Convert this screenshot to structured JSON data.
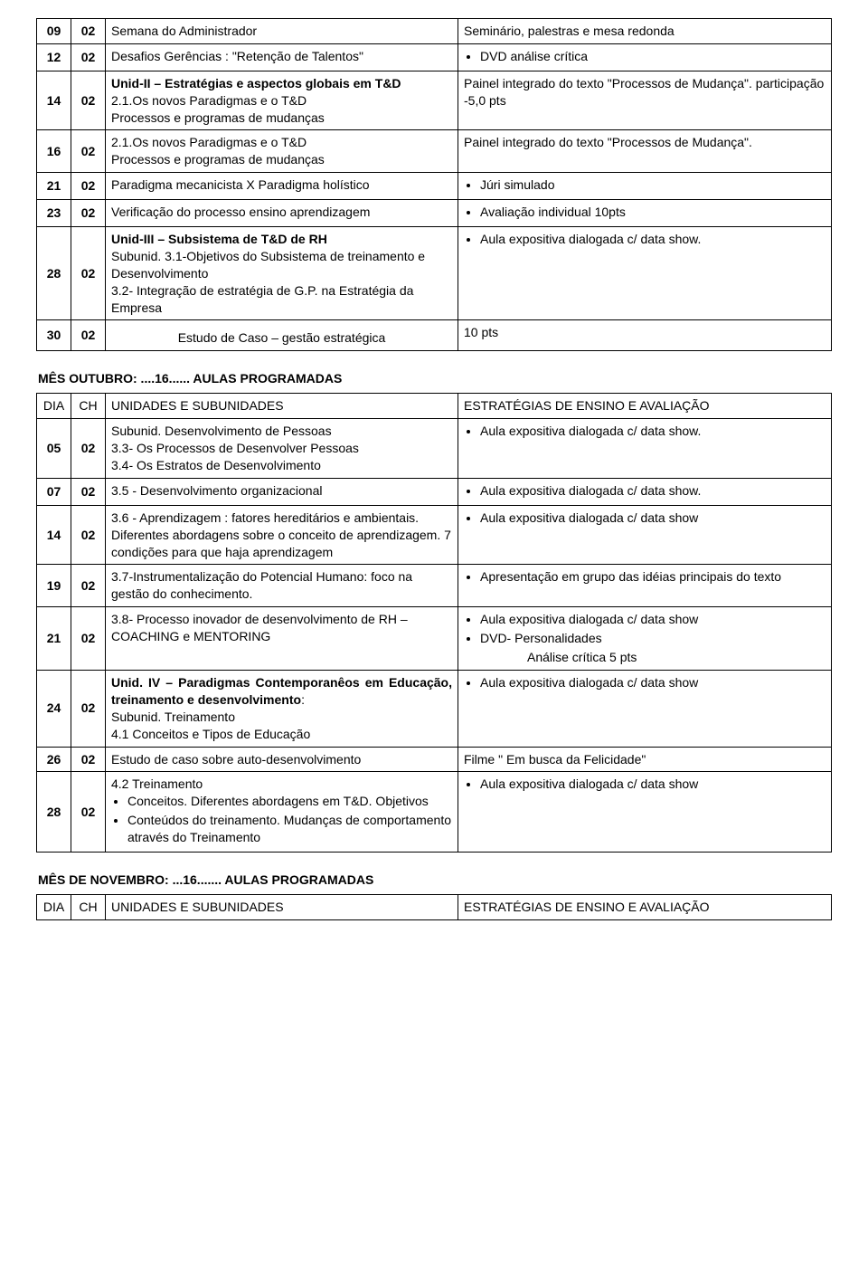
{
  "common": {
    "headers": {
      "dia": "DIA",
      "ch": "CH",
      "unidades": "UNIDADES E SUBUNIDADES",
      "estrategias": "ESTRATÉGIAS DE ENSINO E AVALIAÇÃO"
    },
    "aula_show": "Aula expositiva dialogada c/ data show.",
    "aula_show_np": "Aula expositiva dialogada c/ data show"
  },
  "top_rows": [
    {
      "dia": "09",
      "ch": "02",
      "unit": "Semana do Administrador",
      "strat_plain": "Seminário, palestras e mesa redonda"
    },
    {
      "dia": "12",
      "ch": "02",
      "unit": "Desafios Gerências : \"Retenção de Talentos\"",
      "strat_bullets": [
        "DVD análise crítica"
      ]
    },
    {
      "dia": "14",
      "ch": "02",
      "unit_bold": "Unid-II – Estratégias e aspectos globais em T&D",
      "unit_after": "2.1.Os novos Paradigmas e o T&D\nProcessos e programas de mudanças",
      "strat_plain": "Painel integrado  do texto \"Processos de Mudança\". participação -5,0 pts"
    },
    {
      "dia": "16",
      "ch": "02",
      "unit": "2.1.Os novos Paradigmas e o T&D\nProcessos e programas de mudanças",
      "strat_plain": "Painel integrado  do texto \"Processos de Mudança\"."
    },
    {
      "dia": "21",
      "ch": "02",
      "unit": "Paradigma mecanicista X Paradigma holístico",
      "strat_bullets": [
        "Júri simulado"
      ]
    },
    {
      "dia": "23",
      "ch": "02",
      "unit": "Verificação do processo ensino aprendizagem",
      "strat_bullets": [
        "Avaliação individual  10pts"
      ]
    },
    {
      "dia": "28",
      "ch": "02",
      "unit_bold": "Unid-III – Subsistema de T&D de RH",
      "unit_after": "Subunid. 3.1-Objetivos do Subsistema de treinamento e Desenvolvimento\n3.2- Integração de estratégia de G.P. na Estratégia da Empresa",
      "strat_bullets": [
        "Aula expositiva dialogada c/ data show."
      ]
    },
    {
      "dia": "30",
      "ch": "02",
      "unit_center": "Estudo de Caso – gestão estratégica",
      "strat_plain": "10 pts"
    }
  ],
  "outubro": {
    "title": "MÊS OUTUBRO: ....16...... AULAS PROGRAMADAS",
    "rows": [
      {
        "dia": "05",
        "ch": "02",
        "unit": "Subunid. Desenvolvimento de Pessoas\n3.3- Os Processos de Desenvolver Pessoas\n3.4- Os Estratos de Desenvolvimento",
        "strat_bullets": [
          "Aula expositiva dialogada c/ data show."
        ]
      },
      {
        "dia": "07",
        "ch": "02",
        "unit": "3.5 - Desenvolvimento organizacional",
        "strat_bullets": [
          "Aula expositiva dialogada c/ data show."
        ]
      },
      {
        "dia": "14",
        "ch": "02",
        "unit": "3.6 - Aprendizagem : fatores hereditários e ambientais. Diferentes abordagens  sobre o conceito de aprendizagem. 7 condições para que haja aprendizagem",
        "strat_bullets": [
          "Aula expositiva dialogada c/ data show"
        ]
      },
      {
        "dia": "19",
        "ch": "02",
        "unit": "3.7-Instrumentalização do Potencial Humano: foco na gestão do conhecimento.",
        "strat_bullets": [
          "Apresentação em grupo das idéias principais do texto"
        ]
      },
      {
        "dia": "21",
        "ch": "02",
        "unit": "3.8- Processo inovador de desenvolvimento de RH –COACHING e MENTORING",
        "strat_html": true,
        "strat_b1": "Aula expositiva dialogada c/ data show",
        "strat_b2": "DVD- Personalidades",
        "strat_b2_extra": "Análise crítica 5 pts"
      },
      {
        "dia": "24",
        "ch": "02",
        "unit_bold_justify": "Unid. IV – Paradigmas Contemporanêos em Educação, treinamento e desenvolvimento",
        "unit_after": ":\nSubunid. Treinamento\n4.1 Conceitos e Tipos de Educação",
        "strat_bullets": [
          "Aula expositiva dialogada c/ data show"
        ]
      },
      {
        "dia": "26",
        "ch": "02",
        "unit": "Estudo de caso sobre auto-desenvolvimento",
        "strat_plain": "Filme \" Em busca da Felicidade\""
      },
      {
        "dia": "28",
        "ch": "02",
        "unit_line": "4.2 Treinamento",
        "unit_sub_bullets": [
          "Conceitos. Diferentes abordagens em T&D. Objetivos",
          "Conteúdos do treinamento. Mudanças de comportamento através do Treinamento"
        ],
        "strat_bullets": [
          "Aula expositiva dialogada c/ data show"
        ]
      }
    ]
  },
  "novembro": {
    "title": "MÊS DE NOVEMBRO: ...16....... AULAS PROGRAMADAS"
  }
}
